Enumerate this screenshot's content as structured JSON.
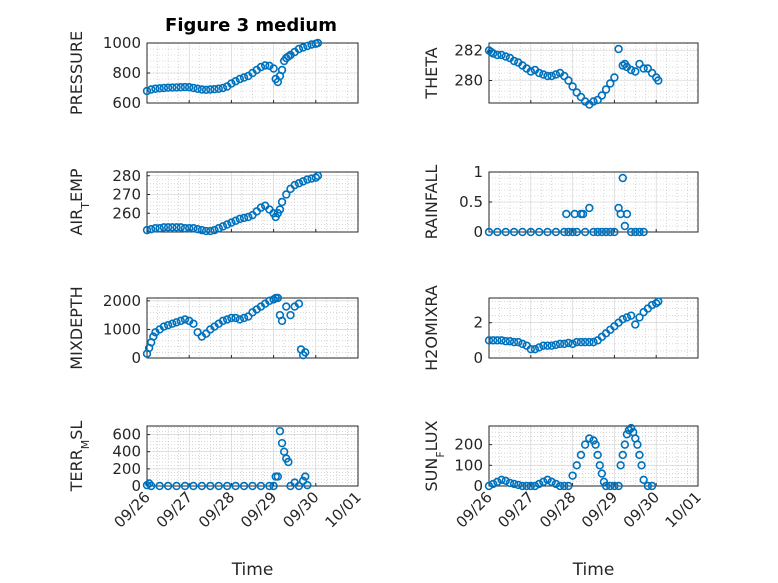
{
  "figure": {
    "title": "Figure 3 medium",
    "marker_color": "#0072BD"
  },
  "chart_data": [
    {
      "type": "scatter",
      "ylabel": "PRESSURE",
      "ylabel_sub": "",
      "ylabel_rest": "",
      "yticks": [
        600,
        800,
        1000
      ],
      "ylim": [
        600,
        1000
      ],
      "xlim": [
        0,
        5
      ],
      "xticks": [
        0,
        1,
        2,
        3,
        4,
        5
      ],
      "xticklabels": [],
      "xlabel": "",
      "grid": true,
      "x": [
        0,
        0.1,
        0.2,
        0.3,
        0.4,
        0.5,
        0.6,
        0.7,
        0.8,
        0.9,
        1.0,
        1.1,
        1.2,
        1.3,
        1.4,
        1.5,
        1.6,
        1.7,
        1.8,
        1.9,
        2.0,
        2.1,
        2.2,
        2.3,
        2.4,
        2.5,
        2.6,
        2.7,
        2.8,
        2.9,
        3.0,
        3.05,
        3.1,
        3.15,
        3.2,
        3.25,
        3.3,
        3.35,
        3.4,
        3.5,
        3.6,
        3.7,
        3.8,
        3.9,
        4.0,
        4.05
      ],
      "y": [
        680,
        690,
        695,
        698,
        700,
        702,
        703,
        704,
        705,
        706,
        705,
        700,
        695,
        690,
        688,
        690,
        692,
        695,
        700,
        710,
        730,
        745,
        760,
        770,
        780,
        800,
        820,
        840,
        850,
        848,
        830,
        760,
        740,
        780,
        820,
        880,
        900,
        910,
        920,
        940,
        960,
        970,
        980,
        990,
        995,
        1000
      ]
    },
    {
      "type": "scatter",
      "ylabel": "THETA",
      "ylabel_sub": "",
      "ylabel_rest": "",
      "yticks": [
        280,
        282
      ],
      "ylim": [
        278.5,
        282.5
      ],
      "xlim": [
        0,
        5
      ],
      "xticks": [
        0,
        1,
        2,
        3,
        4,
        5
      ],
      "xticklabels": [],
      "xlabel": "",
      "grid": true,
      "x": [
        0,
        0.05,
        0.1,
        0.2,
        0.3,
        0.4,
        0.5,
        0.6,
        0.7,
        0.8,
        0.9,
        1.0,
        1.1,
        1.2,
        1.3,
        1.4,
        1.5,
        1.6,
        1.7,
        1.8,
        1.9,
        2.0,
        2.1,
        2.2,
        2.3,
        2.4,
        2.5,
        2.6,
        2.7,
        2.8,
        2.9,
        3.0,
        3.1,
        3.2,
        3.25,
        3.3,
        3.4,
        3.5,
        3.6,
        3.7,
        3.8,
        3.9,
        4.0,
        4.05
      ],
      "y": [
        282.0,
        281.9,
        281.8,
        281.7,
        281.7,
        281.6,
        281.5,
        281.3,
        281.2,
        281.0,
        280.8,
        280.6,
        280.7,
        280.5,
        280.4,
        280.3,
        280.3,
        280.4,
        280.5,
        280.3,
        280.0,
        279.6,
        279.2,
        278.9,
        278.6,
        278.4,
        278.6,
        278.7,
        279.0,
        279.4,
        279.8,
        280.2,
        282.1,
        281.0,
        281.1,
        280.9,
        280.7,
        280.6,
        281.1,
        280.8,
        280.8,
        280.5,
        280.2,
        280.0
      ]
    },
    {
      "type": "scatter",
      "ylabel": "AIR",
      "ylabel_sub": "T",
      "ylabel_rest": "EMP",
      "yticks": [
        260,
        270,
        280
      ],
      "ylim": [
        250,
        282
      ],
      "xlim": [
        0,
        5
      ],
      "xticks": [
        0,
        1,
        2,
        3,
        4,
        5
      ],
      "xticklabels": [],
      "xlabel": "",
      "grid": true,
      "x": [
        0,
        0.1,
        0.2,
        0.3,
        0.4,
        0.5,
        0.6,
        0.7,
        0.8,
        0.9,
        1.0,
        1.1,
        1.2,
        1.3,
        1.4,
        1.5,
        1.6,
        1.7,
        1.8,
        1.9,
        2.0,
        2.1,
        2.2,
        2.3,
        2.4,
        2.5,
        2.6,
        2.7,
        2.8,
        2.9,
        3.0,
        3.05,
        3.1,
        3.15,
        3.2,
        3.3,
        3.4,
        3.5,
        3.6,
        3.7,
        3.8,
        3.9,
        4.0,
        4.05
      ],
      "y": [
        251,
        251.5,
        252,
        252,
        252.5,
        252.5,
        252.5,
        252.5,
        252.5,
        252,
        252,
        252,
        251.5,
        251,
        250.5,
        250.5,
        251,
        252,
        253,
        254,
        255,
        256,
        257,
        257.5,
        258,
        259,
        261,
        263,
        264,
        262,
        260,
        258,
        260,
        262,
        266,
        270,
        273,
        275,
        276,
        277,
        278,
        278.5,
        279,
        280
      ]
    },
    {
      "type": "scatter",
      "ylabel": "RAINFALL",
      "ylabel_sub": "",
      "ylabel_rest": "",
      "yticks": [
        0,
        0.5,
        1
      ],
      "ylim": [
        0,
        1
      ],
      "xlim": [
        0,
        5
      ],
      "xticks": [
        0,
        1,
        2,
        3,
        4,
        5
      ],
      "xticklabels": [],
      "xlabel": "",
      "grid": true,
      "x": [
        0,
        0.2,
        0.4,
        0.6,
        0.8,
        1.0,
        1.2,
        1.4,
        1.6,
        1.8,
        1.85,
        1.9,
        2.0,
        2.05,
        2.1,
        2.2,
        2.25,
        2.3,
        2.4,
        2.5,
        2.6,
        2.7,
        2.8,
        2.9,
        3.0,
        3.1,
        3.15,
        3.2,
        3.25,
        3.3,
        3.4,
        3.5,
        3.6,
        3.7
      ],
      "y": [
        0,
        0,
        0,
        0,
        0,
        0,
        0,
        0,
        0,
        0,
        0.3,
        0,
        0,
        0.3,
        0,
        0.3,
        0.3,
        0,
        0.4,
        0,
        0,
        0,
        0,
        0,
        0,
        0.4,
        0.3,
        0.9,
        0.1,
        0.3,
        0,
        0,
        0,
        0
      ]
    },
    {
      "type": "scatter",
      "ylabel": "MIXDEPTH",
      "ylabel_sub": "",
      "ylabel_rest": "",
      "yticks": [
        0,
        1000,
        2000
      ],
      "ylim": [
        0,
        2100
      ],
      "xlim": [
        0,
        5
      ],
      "xticks": [
        0,
        1,
        2,
        3,
        4,
        5
      ],
      "xticklabels": [],
      "xlabel": "",
      "grid": true,
      "x": [
        0,
        0.05,
        0.1,
        0.15,
        0.2,
        0.3,
        0.4,
        0.5,
        0.6,
        0.7,
        0.8,
        0.9,
        1.0,
        1.1,
        1.2,
        1.3,
        1.4,
        1.5,
        1.6,
        1.7,
        1.8,
        1.9,
        2.0,
        2.1,
        2.2,
        2.3,
        2.4,
        2.5,
        2.6,
        2.7,
        2.8,
        2.9,
        3.0,
        3.05,
        3.1,
        3.15,
        3.2,
        3.3,
        3.4,
        3.5,
        3.6,
        3.65,
        3.7,
        3.75
      ],
      "y": [
        150,
        350,
        550,
        750,
        900,
        1000,
        1100,
        1150,
        1200,
        1250,
        1300,
        1350,
        1300,
        1200,
        900,
        750,
        850,
        1000,
        1100,
        1200,
        1300,
        1350,
        1400,
        1400,
        1350,
        1400,
        1450,
        1600,
        1700,
        1800,
        1900,
        2000,
        2050,
        2100,
        2100,
        1500,
        1300,
        1800,
        1500,
        1800,
        1900,
        300,
        100,
        200
      ]
    },
    {
      "type": "scatter",
      "ylabel": "H2OMIXRA",
      "ylabel_sub": "",
      "ylabel_rest": "",
      "yticks": [
        0,
        2
      ],
      "ylim": [
        0,
        3.4
      ],
      "xlim": [
        0,
        5
      ],
      "xticks": [
        0,
        1,
        2,
        3,
        4,
        5
      ],
      "xticklabels": [],
      "xlabel": "",
      "grid": true,
      "x": [
        0,
        0.1,
        0.2,
        0.3,
        0.4,
        0.5,
        0.6,
        0.7,
        0.8,
        0.9,
        1.0,
        1.1,
        1.2,
        1.3,
        1.4,
        1.5,
        1.6,
        1.7,
        1.8,
        1.9,
        2.0,
        2.1,
        2.2,
        2.3,
        2.4,
        2.5,
        2.6,
        2.7,
        2.8,
        2.9,
        3.0,
        3.1,
        3.2,
        3.3,
        3.4,
        3.5,
        3.6,
        3.7,
        3.8,
        3.9,
        4.0,
        4.05
      ],
      "y": [
        1.0,
        1.0,
        1.0,
        1.0,
        0.95,
        0.95,
        0.9,
        0.9,
        0.8,
        0.7,
        0.5,
        0.5,
        0.6,
        0.7,
        0.7,
        0.7,
        0.75,
        0.8,
        0.8,
        0.85,
        0.8,
        0.9,
        0.9,
        0.9,
        0.9,
        0.9,
        1.0,
        1.2,
        1.4,
        1.6,
        1.8,
        2.0,
        2.2,
        2.3,
        2.4,
        1.9,
        2.3,
        2.6,
        2.8,
        3.0,
        3.1,
        3.2
      ]
    },
    {
      "type": "scatter",
      "ylabel": "TERR",
      "ylabel_sub": "M",
      "ylabel_rest": "SL",
      "yticks": [
        0,
        200,
        400,
        600
      ],
      "ylim": [
        0,
        700
      ],
      "xlim": [
        0,
        5
      ],
      "xticks": [
        0,
        1,
        2,
        3,
        4,
        5
      ],
      "xticklabels": [
        "09/26",
        "09/27",
        "09/28",
        "09/29",
        "09/30",
        "10/01"
      ],
      "xlabel": "Time",
      "grid": true,
      "x": [
        0,
        0.05,
        0.1,
        0.3,
        0.5,
        0.7,
        0.9,
        1.1,
        1.3,
        1.5,
        1.7,
        1.9,
        2.1,
        2.3,
        2.5,
        2.7,
        2.9,
        3.0,
        3.05,
        3.1,
        3.15,
        3.2,
        3.25,
        3.3,
        3.35,
        3.4,
        3.5,
        3.6,
        3.7,
        3.75,
        3.8
      ],
      "y": [
        10,
        30,
        0,
        0,
        0,
        0,
        0,
        0,
        0,
        0,
        0,
        0,
        0,
        0,
        0,
        0,
        0,
        0,
        110,
        110,
        640,
        500,
        400,
        320,
        280,
        0,
        40,
        0,
        60,
        110,
        10
      ]
    },
    {
      "type": "scatter",
      "ylabel": "SUN",
      "ylabel_sub": "F",
      "ylabel_rest": "LUX",
      "yticks": [
        0,
        100,
        200
      ],
      "ylim": [
        0,
        290
      ],
      "xlim": [
        0,
        5
      ],
      "xticks": [
        0,
        1,
        2,
        3,
        4,
        5
      ],
      "xticklabels": [
        "09/26",
        "09/27",
        "09/28",
        "09/29",
        "09/30",
        "10/01"
      ],
      "xlabel": "Time",
      "grid": true,
      "x": [
        0,
        0.1,
        0.2,
        0.3,
        0.4,
        0.5,
        0.6,
        0.7,
        0.8,
        0.9,
        1.0,
        1.1,
        1.2,
        1.3,
        1.4,
        1.5,
        1.6,
        1.7,
        1.8,
        1.9,
        2.0,
        2.1,
        2.2,
        2.3,
        2.4,
        2.5,
        2.55,
        2.6,
        2.65,
        2.7,
        2.75,
        2.8,
        2.9,
        3.0,
        3.1,
        3.15,
        3.2,
        3.25,
        3.3,
        3.35,
        3.4,
        3.45,
        3.5,
        3.55,
        3.6,
        3.65,
        3.7,
        3.8,
        3.9
      ],
      "y": [
        0,
        10,
        20,
        30,
        25,
        15,
        10,
        5,
        0,
        0,
        0,
        0,
        10,
        20,
        30,
        20,
        10,
        0,
        0,
        0,
        50,
        100,
        150,
        200,
        230,
        220,
        200,
        150,
        100,
        60,
        20,
        0,
        0,
        0,
        0,
        100,
        150,
        200,
        250,
        270,
        280,
        260,
        230,
        200,
        150,
        100,
        30,
        0,
        0
      ]
    }
  ]
}
